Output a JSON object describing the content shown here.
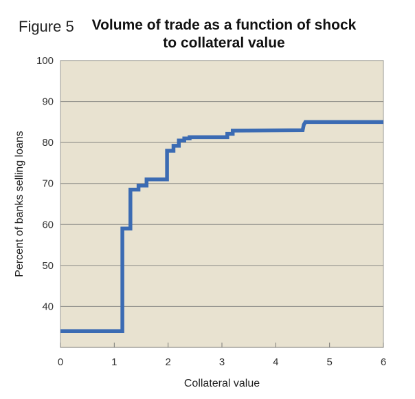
{
  "figure_label": "Figure 5",
  "title_line1": "Volume of trade as a function of shock",
  "title_line2": "to collateral value",
  "colors": {
    "plot_bg": "#e8e2d0",
    "grid": "#8a8a86",
    "line": "#3b6bb3"
  },
  "chart_data": {
    "type": "line",
    "step": true,
    "title": "Volume of trade as a function of shock to collateral value",
    "xlabel": "Collateral value",
    "ylabel": "Percent of banks selling loans",
    "xlim": [
      0,
      6
    ],
    "ylim": [
      30,
      100
    ],
    "xticks": [
      0,
      1,
      2,
      3,
      4,
      5,
      6
    ],
    "yticks": [
      40,
      50,
      60,
      70,
      80,
      90,
      100
    ],
    "grid": "horizontal",
    "legend": "none",
    "series": [
      {
        "x": [
          0,
          1.15,
          1.15,
          1.3,
          1.3,
          1.45,
          1.45,
          1.6,
          1.6,
          1.98,
          1.98,
          2.1,
          2.1,
          2.2,
          2.2,
          2.3,
          2.3,
          2.4,
          2.4,
          3.1,
          3.1,
          3.2,
          3.2,
          4.5,
          4.52,
          4.55,
          6
        ],
        "y": [
          34,
          34,
          59,
          59,
          68.5,
          68.5,
          69.5,
          69.5,
          71,
          71,
          78,
          78,
          79.2,
          79.2,
          80.5,
          80.5,
          81,
          81,
          81.3,
          81.3,
          82.1,
          82.1,
          82.9,
          83,
          84.3,
          85,
          85
        ]
      }
    ]
  }
}
